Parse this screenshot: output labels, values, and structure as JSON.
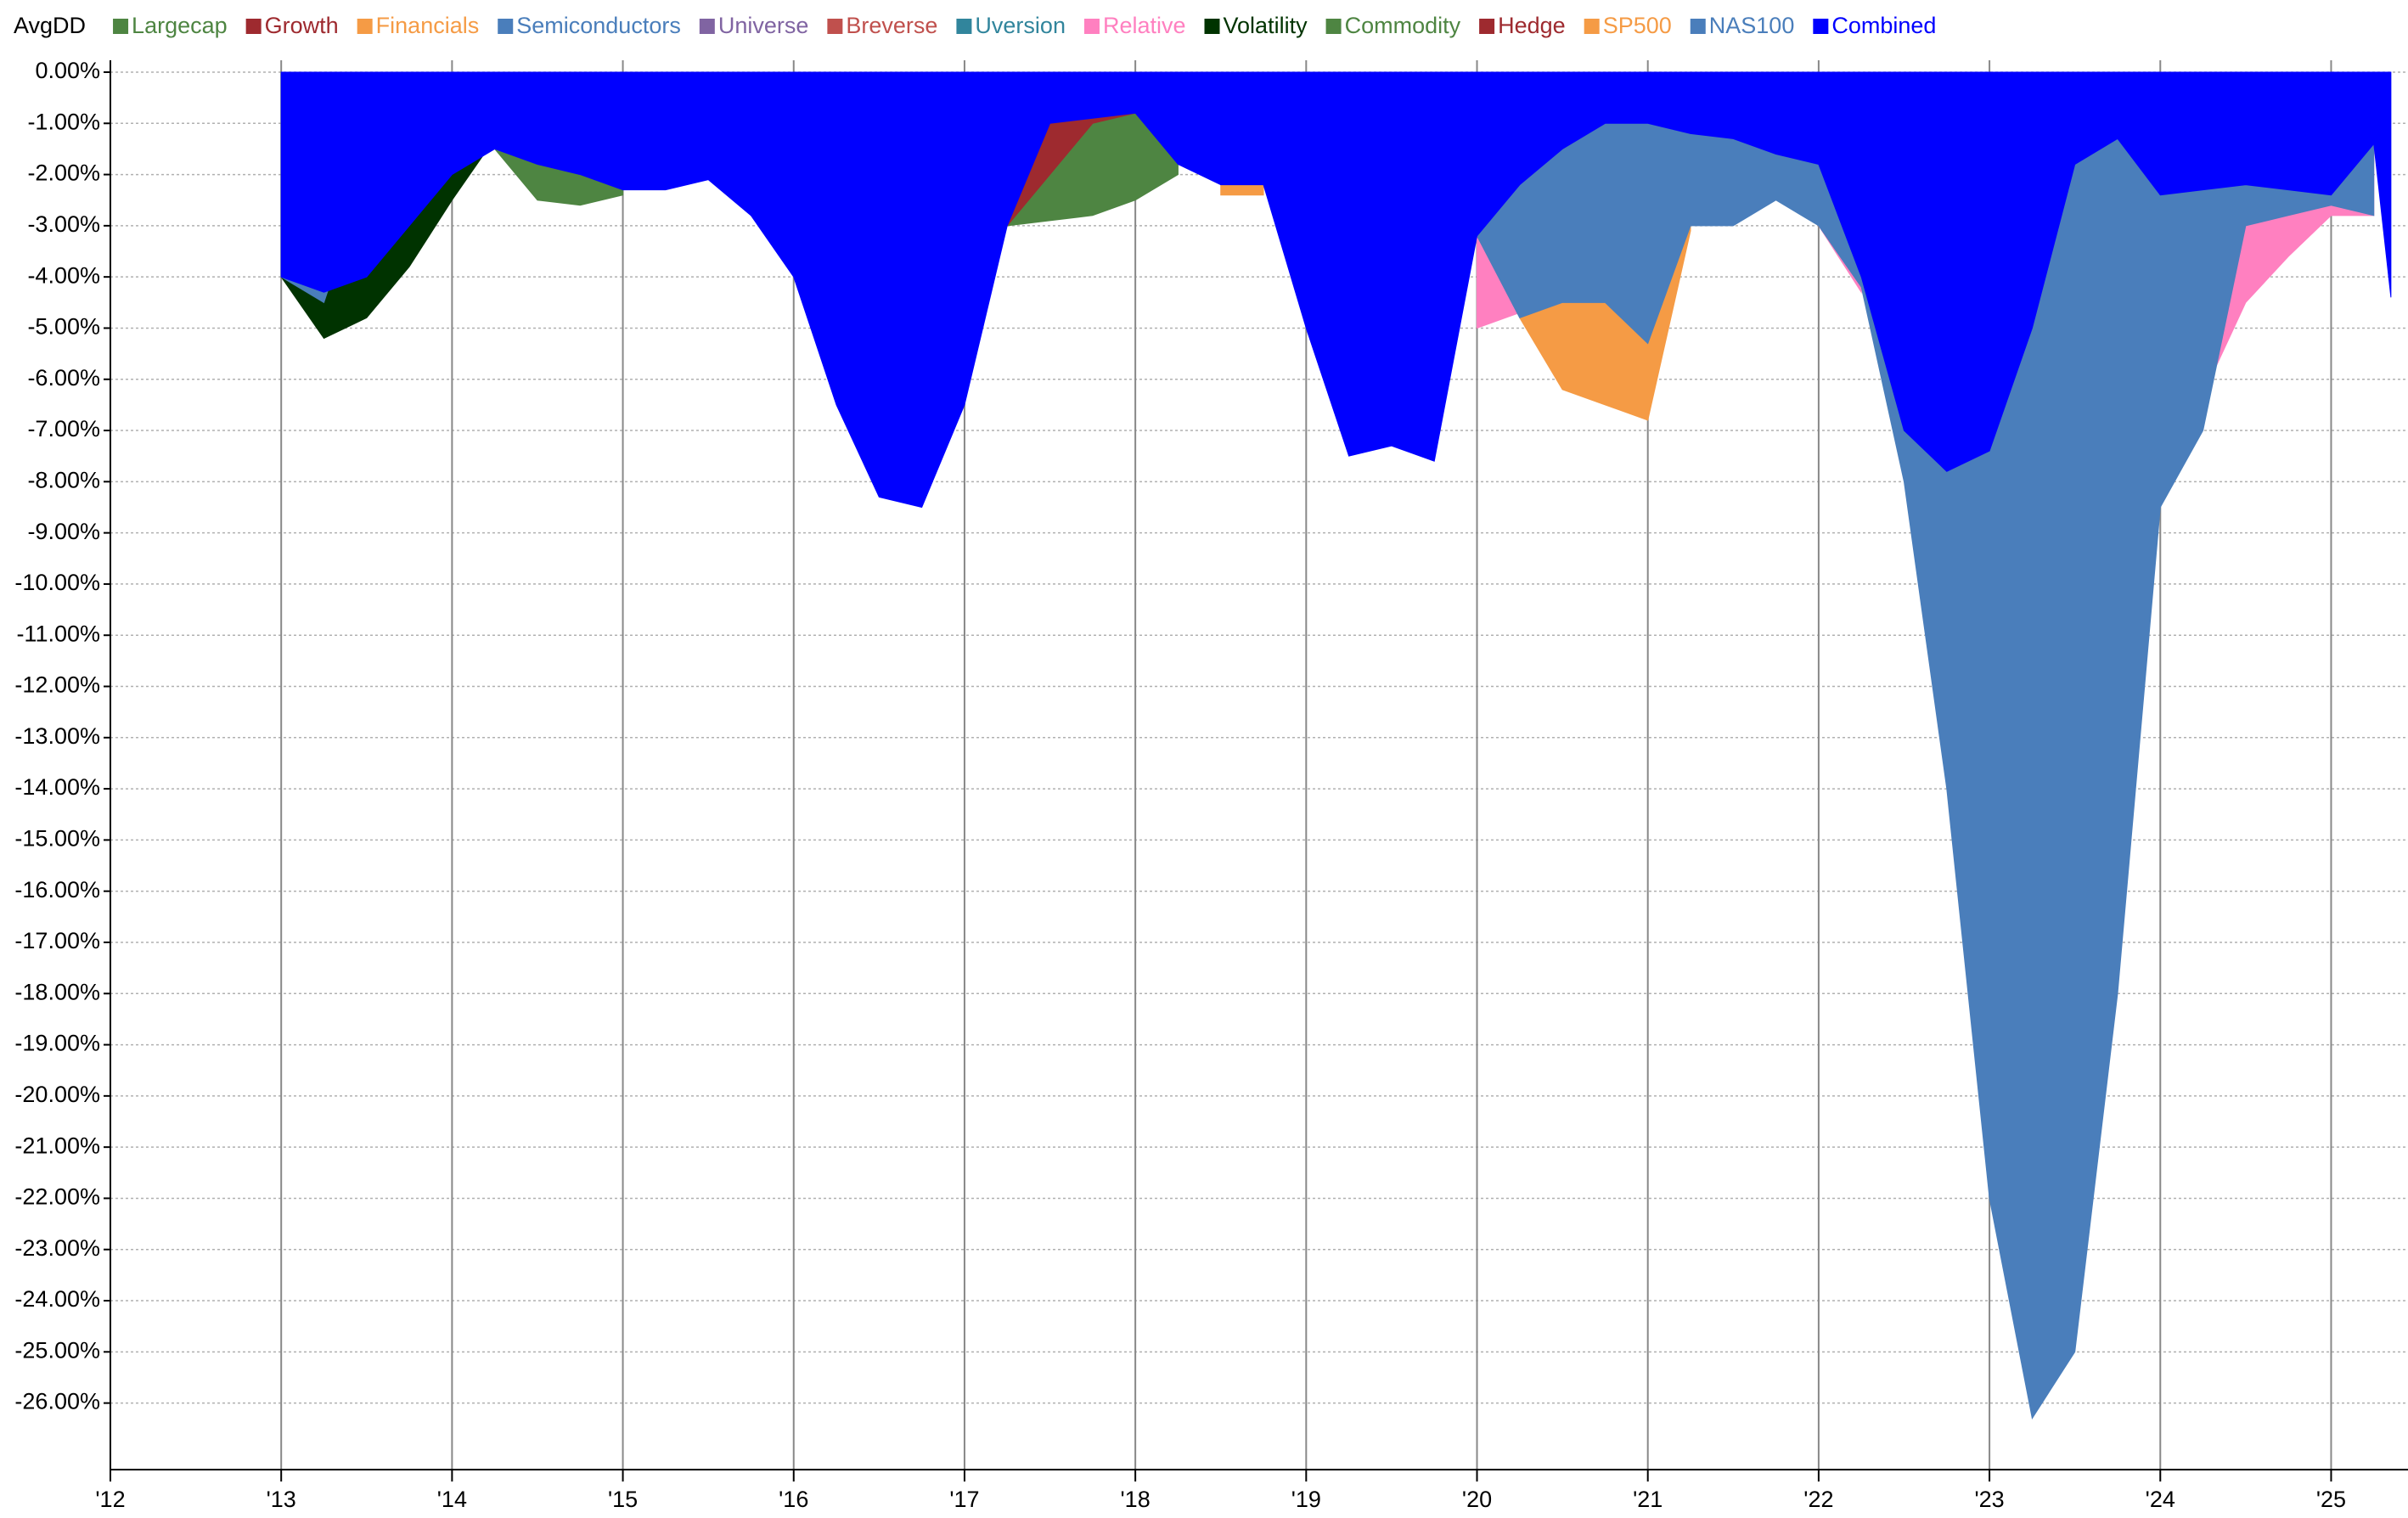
{
  "chart_data": {
    "type": "area",
    "title": "AvgDD",
    "x": [
      2013,
      2013.25,
      2013.5,
      2013.75,
      2014,
      2014.25,
      2014.5,
      2014.75,
      2015,
      2015.25,
      2015.5,
      2015.75,
      2016,
      2016.25,
      2016.5,
      2016.75,
      2017,
      2017.25,
      2017.5,
      2017.75,
      2018,
      2018.25,
      2018.5,
      2018.75,
      2019,
      2019.25,
      2019.5,
      2019.75,
      2020,
      2020.25,
      2020.5,
      2020.75,
      2021,
      2021.25,
      2021.5,
      2021.75,
      2022,
      2022.25,
      2022.5,
      2022.75,
      2023,
      2023.25,
      2023.5,
      2023.75,
      2024,
      2024.25,
      2024.5,
      2024.75,
      2025,
      2025.25,
      2025.35
    ],
    "series": [
      {
        "name": "Largecap",
        "color": "#4e8542",
        "values": [
          null,
          null,
          null,
          null,
          null,
          null,
          null,
          null,
          null,
          null,
          null,
          null,
          null,
          null,
          null,
          null,
          null,
          null,
          null,
          null,
          null,
          null,
          null,
          null,
          null,
          null,
          null,
          null,
          null,
          null,
          null,
          null,
          null,
          null,
          null,
          null,
          null,
          null,
          null,
          null,
          null,
          null,
          null,
          null,
          null,
          null,
          null,
          null,
          null,
          null,
          null
        ]
      },
      {
        "name": "Growth",
        "color": "#9e2a2f",
        "values": [
          null,
          null,
          null,
          null,
          null,
          null,
          null,
          null,
          null,
          null,
          null,
          null,
          null,
          null,
          null,
          null,
          null,
          null,
          null,
          null,
          null,
          null,
          null,
          null,
          null,
          null,
          null,
          null,
          null,
          null,
          null,
          null,
          null,
          null,
          null,
          null,
          null,
          null,
          null,
          null,
          null,
          null,
          null,
          null,
          null,
          null,
          null,
          null,
          null,
          null,
          null
        ]
      },
      {
        "name": "Financials",
        "color": "#f59b45",
        "values": [
          null,
          null,
          null,
          null,
          null,
          null,
          null,
          null,
          null,
          null,
          null,
          null,
          null,
          null,
          null,
          null,
          null,
          null,
          null,
          null,
          null,
          null,
          null,
          null,
          null,
          null,
          null,
          null,
          null,
          null,
          null,
          null,
          null,
          null,
          null,
          null,
          null,
          null,
          null,
          null,
          null,
          null,
          null,
          null,
          null,
          null,
          null,
          null,
          null,
          null,
          null
        ]
      },
      {
        "name": "Semiconductors",
        "color": "#4a7ebb",
        "values": [
          null,
          null,
          null,
          null,
          null,
          null,
          null,
          null,
          null,
          null,
          null,
          null,
          null,
          null,
          null,
          null,
          null,
          null,
          null,
          null,
          null,
          null,
          null,
          null,
          null,
          null,
          null,
          null,
          null,
          null,
          null,
          null,
          null,
          null,
          null,
          null,
          null,
          null,
          null,
          null,
          null,
          null,
          null,
          null,
          null,
          null,
          null,
          null,
          null,
          null,
          null
        ]
      },
      {
        "name": "Universe",
        "color": "#8064a2",
        "values": [
          null,
          null,
          null,
          null,
          null,
          null,
          null,
          null,
          null,
          null,
          null,
          null,
          null,
          null,
          null,
          null,
          null,
          null,
          null,
          null,
          null,
          null,
          null,
          null,
          null,
          null,
          null,
          null,
          null,
          null,
          null,
          null,
          null,
          null,
          null,
          null,
          null,
          null,
          null,
          null,
          null,
          null,
          null,
          null,
          null,
          null,
          null,
          null,
          null,
          null,
          null
        ]
      },
      {
        "name": "Breverse",
        "color": "#c0504d",
        "values": [
          null,
          null,
          null,
          null,
          null,
          null,
          null,
          null,
          null,
          null,
          null,
          null,
          null,
          null,
          null,
          null,
          null,
          null,
          null,
          null,
          null,
          null,
          null,
          null,
          null,
          null,
          null,
          null,
          null,
          null,
          null,
          null,
          null,
          null,
          null,
          null,
          null,
          null,
          null,
          null,
          null,
          null,
          null,
          null,
          null,
          null,
          null,
          null,
          null,
          null,
          null
        ]
      },
      {
        "name": "Uversion",
        "color": "#31859c",
        "values": [
          null,
          null,
          null,
          null,
          null,
          null,
          null,
          null,
          null,
          null,
          null,
          null,
          null,
          null,
          null,
          null,
          null,
          null,
          null,
          null,
          null,
          null,
          null,
          null,
          null,
          null,
          null,
          null,
          null,
          null,
          null,
          null,
          null,
          null,
          null,
          null,
          null,
          null,
          null,
          null,
          null,
          null,
          null,
          null,
          null,
          null,
          null,
          null,
          null,
          null,
          null
        ]
      },
      {
        "name": "Relative",
        "color": "#ff80c0",
        "values": [
          null,
          null,
          null,
          null,
          null,
          null,
          null,
          null,
          null,
          null,
          null,
          null,
          null,
          null,
          null,
          null,
          null,
          null,
          null,
          null,
          null,
          null,
          null,
          null,
          null,
          null,
          null,
          null,
          -5.0,
          -4.7,
          null,
          null,
          null,
          null,
          null,
          -2.3,
          -3.0,
          -4.3,
          null,
          null,
          null,
          null,
          null,
          null,
          null,
          -6.3,
          -4.5,
          -3.6,
          -2.8,
          -2.8,
          null
        ]
      },
      {
        "name": "Volatility",
        "color": "#003300",
        "values": [
          -4.0,
          -5.2,
          -4.8,
          -3.8,
          -2.5,
          -1.3,
          null,
          null,
          null,
          null,
          null,
          null,
          null,
          null,
          null,
          null,
          null,
          -2.2,
          -0.8,
          -0.9,
          null,
          null,
          null,
          null,
          null,
          null,
          null,
          null,
          null,
          null,
          null,
          null,
          null,
          null,
          null,
          null,
          null,
          null,
          null,
          null,
          null,
          null,
          null,
          null,
          null,
          null,
          null,
          null,
          null,
          null,
          null
        ]
      },
      {
        "name": "Commodity",
        "color": "#4e8542",
        "values": [
          null,
          null,
          null,
          null,
          null,
          -1.5,
          -2.5,
          -2.6,
          -2.4,
          null,
          null,
          null,
          null,
          null,
          null,
          null,
          null,
          -3.0,
          -2.9,
          -2.8,
          -2.5,
          -2.0,
          null,
          null,
          null,
          null,
          null,
          null,
          null,
          null,
          null,
          null,
          null,
          null,
          null,
          null,
          null,
          null,
          null,
          null,
          null,
          null,
          null,
          null,
          null,
          null,
          null,
          null,
          null,
          null,
          null
        ]
      },
      {
        "name": "Hedge",
        "color": "#9e2a2f",
        "values": [
          null,
          null,
          null,
          null,
          null,
          null,
          null,
          null,
          null,
          null,
          null,
          null,
          null,
          null,
          null,
          null,
          -3.8,
          -3.0,
          -2.0,
          -1.0,
          -0.8,
          -1.5,
          null,
          null,
          null,
          null,
          null,
          null,
          null,
          null,
          null,
          null,
          null,
          null,
          null,
          null,
          null,
          null,
          null,
          null,
          null,
          null,
          null,
          null,
          null,
          null,
          null,
          null,
          null,
          null,
          null
        ]
      },
      {
        "name": "SP500",
        "color": "#f59b45",
        "values": [
          null,
          null,
          null,
          null,
          null,
          null,
          null,
          null,
          null,
          null,
          null,
          null,
          null,
          null,
          null,
          null,
          null,
          null,
          null,
          null,
          null,
          null,
          -2.4,
          -2.4,
          null,
          null,
          null,
          null,
          null,
          -4.8,
          -6.2,
          -6.5,
          -6.8,
          -3.1,
          null,
          null,
          null,
          null,
          null,
          null,
          null,
          null,
          null,
          null,
          null,
          null,
          null,
          null,
          null,
          null,
          null
        ]
      },
      {
        "name": "NAS100",
        "color": "#4a7ebb",
        "values": [
          -4.0,
          -4.5,
          -2.0,
          -2.0,
          -1.2,
          -1.5,
          null,
          null,
          null,
          null,
          null,
          null,
          null,
          null,
          null,
          null,
          null,
          null,
          null,
          null,
          null,
          null,
          null,
          null,
          null,
          null,
          null,
          null,
          -3.2,
          -4.8,
          -4.5,
          -4.5,
          -5.3,
          -3.0,
          -3.0,
          -2.5,
          -3.0,
          -4.2,
          -8.0,
          -14.0,
          -22.0,
          -26.3,
          -25.0,
          -18.0,
          -8.5,
          -7.0,
          -3.0,
          -2.8,
          -2.6,
          -2.8,
          null
        ]
      },
      {
        "name": "Combined",
        "color": "#0000ff",
        "values": [
          -4.0,
          -4.3,
          -4.0,
          -3.0,
          -2.0,
          -1.5,
          -1.8,
          -2.0,
          -2.3,
          -2.3,
          -2.1,
          -2.8,
          -4.0,
          -6.5,
          -8.3,
          -8.5,
          -6.5,
          -3.0,
          -1.0,
          -0.9,
          -0.8,
          -1.8,
          -2.2,
          -2.2,
          -5.0,
          -7.5,
          -7.3,
          -7.6,
          -3.2,
          -2.2,
          -1.5,
          -1.0,
          -1.0,
          -1.2,
          -1.3,
          -1.6,
          -1.8,
          -4.0,
          -7.0,
          -7.8,
          -7.4,
          -5.0,
          -1.8,
          -1.3,
          -2.4,
          -2.3,
          -2.2,
          -2.3,
          -2.4,
          -1.4,
          -4.4
        ]
      }
    ],
    "xlim": [
      2012,
      2025.45
    ],
    "xticks": [
      {
        "value": 2012,
        "label": "'12"
      },
      {
        "value": 2013,
        "label": "'13"
      },
      {
        "value": 2014,
        "label": "'14"
      },
      {
        "value": 2015,
        "label": "'15"
      },
      {
        "value": 2016,
        "label": "'16"
      },
      {
        "value": 2017,
        "label": "'17"
      },
      {
        "value": 2018,
        "label": "'18"
      },
      {
        "value": 2019,
        "label": "'19"
      },
      {
        "value": 2020,
        "label": "'20"
      },
      {
        "value": 2021,
        "label": "'21"
      },
      {
        "value": 2022,
        "label": "'22"
      },
      {
        "value": 2023,
        "label": "'23"
      },
      {
        "value": 2024,
        "label": "'24"
      },
      {
        "value": 2025,
        "label": "'25"
      }
    ],
    "ylim": [
      -27.3,
      0
    ],
    "yticks": [
      {
        "value": 0,
        "label": "0.00%"
      },
      {
        "value": -1,
        "label": "-1.00%"
      },
      {
        "value": -2,
        "label": "-2.00%"
      },
      {
        "value": -3,
        "label": "-3.00%"
      },
      {
        "value": -4,
        "label": "-4.00%"
      },
      {
        "value": -5,
        "label": "-5.00%"
      },
      {
        "value": -6,
        "label": "-6.00%"
      },
      {
        "value": -7,
        "label": "-7.00%"
      },
      {
        "value": -8,
        "label": "-8.00%"
      },
      {
        "value": -9,
        "label": "-9.00%"
      },
      {
        "value": -10,
        "label": "-10.00%"
      },
      {
        "value": -11,
        "label": "-11.00%"
      },
      {
        "value": -12,
        "label": "-12.00%"
      },
      {
        "value": -13,
        "label": "-13.00%"
      },
      {
        "value": -14,
        "label": "-14.00%"
      },
      {
        "value": -15,
        "label": "-15.00%"
      },
      {
        "value": -16,
        "label": "-16.00%"
      },
      {
        "value": -17,
        "label": "-17.00%"
      },
      {
        "value": -18,
        "label": "-18.00%"
      },
      {
        "value": -19,
        "label": "-19.00%"
      },
      {
        "value": -20,
        "label": "-20.00%"
      },
      {
        "value": -21,
        "label": "-21.00%"
      },
      {
        "value": -22,
        "label": "-22.00%"
      },
      {
        "value": -23,
        "label": "-23.00%"
      },
      {
        "value": -24,
        "label": "-24.00%"
      },
      {
        "value": -25,
        "label": "-25.00%"
      },
      {
        "value": -26,
        "label": "-26.00%"
      }
    ],
    "grid": true
  }
}
